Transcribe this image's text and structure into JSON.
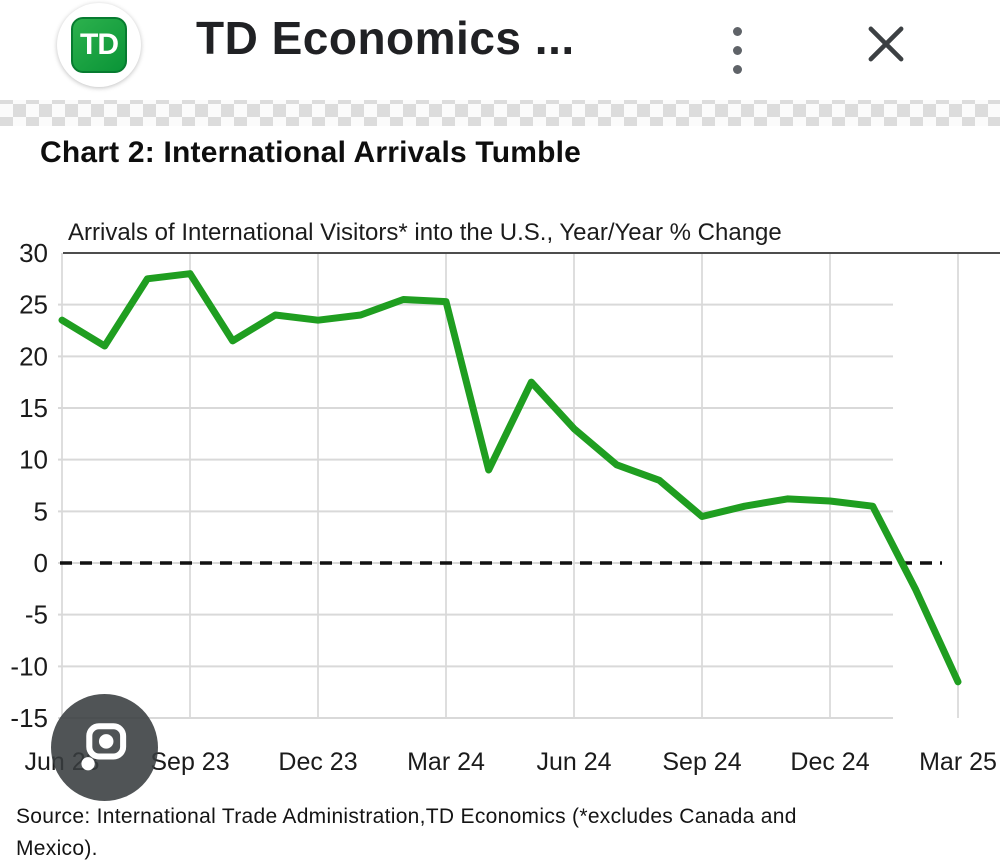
{
  "header": {
    "logo_text": "TD",
    "title": "TD Economics ...",
    "more_options_icon": "kebab-menu-icon",
    "close_icon": "close-icon"
  },
  "chart": {
    "heading": "Chart 2: International Arrivals Tumble",
    "subtitle": "Arrivals of International Visitors* into the U.S., Year/Year % Change",
    "source_line1": "Source: International Trade Administration,TD Economics (*excludes Canada and",
    "source_line2": "Mexico)."
  },
  "chart_data": {
    "type": "line",
    "title": "Chart 2: International Arrivals Tumble",
    "subtitle": "Arrivals of International Visitors* into the U.S., Year/Year % Change",
    "x": [
      "Jun 23",
      "Jul 23",
      "Aug 23",
      "Sep 23",
      "Oct 23",
      "Nov 23",
      "Dec 23",
      "Jan 24",
      "Feb 24",
      "Mar 24",
      "Apr 24",
      "May 24",
      "Jun 24",
      "Jul 24",
      "Aug 24",
      "Sep 24",
      "Oct 24",
      "Nov 24",
      "Dec 24",
      "Jan 25",
      "Feb 25",
      "Mar 25"
    ],
    "series": [
      {
        "name": "Arrivals of International Visitors into the U.S., Year/Year % Change",
        "values": [
          23.5,
          21,
          27.5,
          28,
          21.5,
          24,
          23.5,
          24,
          25.5,
          25.3,
          9,
          17.5,
          13,
          9.5,
          8,
          4.5,
          5.5,
          6.2,
          6,
          5.5,
          -2.5,
          -11.5
        ]
      }
    ],
    "x_tick_labels": [
      "Jun 23",
      "Sep 23",
      "Dec 23",
      "Mar 24",
      "Jun 24",
      "Sep 24",
      "Dec 24",
      "Mar 25"
    ],
    "y_ticks": [
      30,
      25,
      20,
      15,
      10,
      5,
      0,
      -5,
      -10,
      -15
    ],
    "ylim": [
      -15,
      30
    ],
    "grid": true,
    "zero_line": "black-dashed",
    "line_color": "#1f9e20",
    "legend": "none",
    "source": "Source: International Trade Administration,TD Economics (*excludes Canada and Mexico)."
  },
  "lens": {
    "icon": "google-lens-icon"
  }
}
